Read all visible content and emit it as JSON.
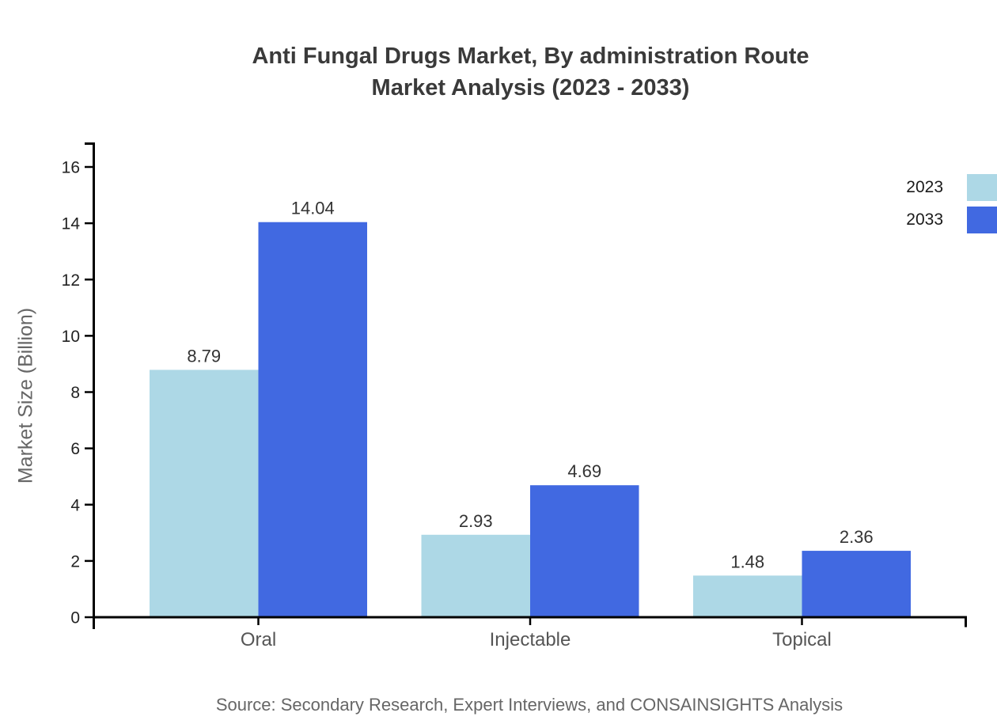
{
  "title": {
    "line1": "Anti Fungal Drugs Market, By administration Route",
    "line2": "Market Analysis (2023 - 2033)"
  },
  "source_note": "Source: Secondary Research, Expert Interviews, and CONSAINSIGHTS Analysis",
  "chart_data": {
    "type": "bar",
    "title": "Anti Fungal Drugs Market, By administration Route Market Analysis (2023 - 2033)",
    "categories": [
      "Oral",
      "Injectable",
      "Topical"
    ],
    "series": [
      {
        "name": "2023",
        "color": "#add8e6",
        "values": [
          8.79,
          2.93,
          1.48
        ]
      },
      {
        "name": "2033",
        "color": "#4169e1",
        "values": [
          14.04,
          4.69,
          2.36
        ]
      }
    ],
    "value_labels": [
      [
        "8.79",
        "2.93",
        "1.48"
      ],
      [
        "14.04",
        "4.69",
        "2.36"
      ]
    ],
    "xlabel": "",
    "ylabel": "Market Size (Billion)",
    "ylim": [
      0,
      16.9
    ],
    "yticks": [
      0,
      2,
      4,
      6,
      8,
      10,
      12,
      14,
      16
    ],
    "grid": false,
    "bar_value_labels": true,
    "legend_position": "right-outside-top"
  },
  "colors": {
    "axis": "#000000",
    "tick_label": "#222222",
    "category_label": "#555555",
    "value_label": "#333333",
    "title": "#3a3a3a",
    "background": "#ffffff"
  }
}
